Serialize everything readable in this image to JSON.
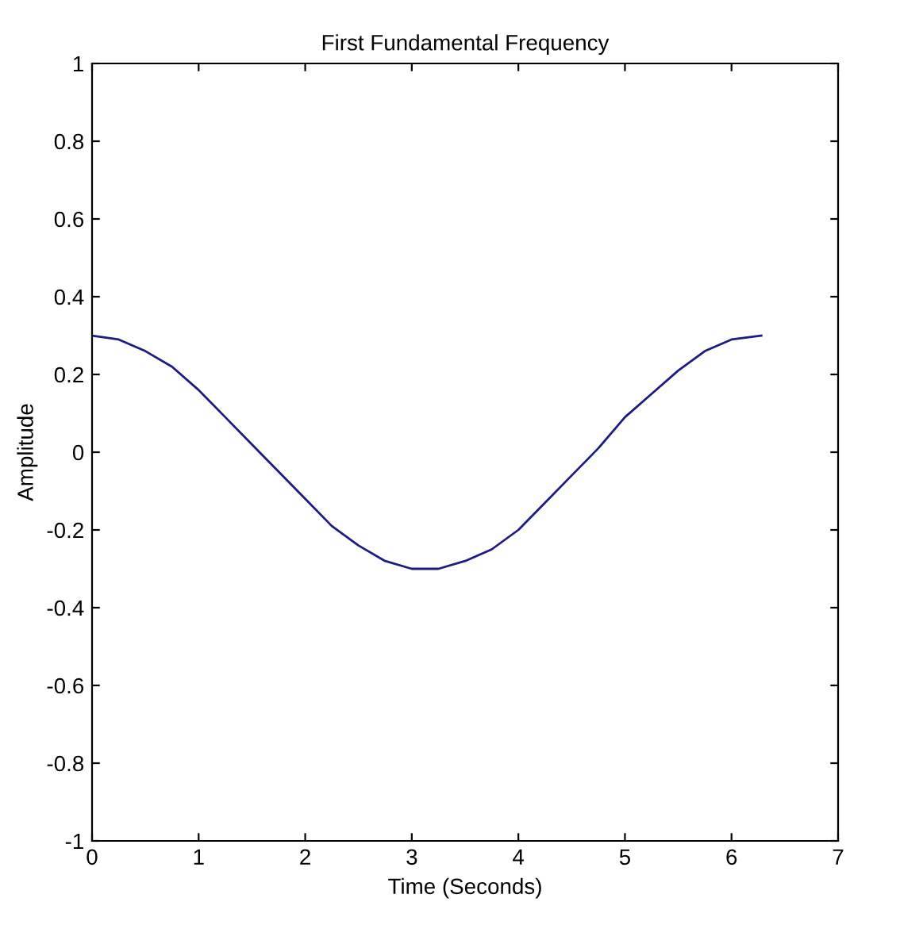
{
  "chart_data": {
    "type": "line",
    "title": "First Fundamental Frequency",
    "xlabel": "Time (Seconds)",
    "ylabel": "Amplitude",
    "x": [
      0,
      0.25,
      0.5,
      0.75,
      1,
      1.25,
      1.5,
      1.75,
      2,
      2.25,
      2.5,
      2.75,
      3,
      3.25,
      3.5,
      3.75,
      4,
      4.25,
      4.5,
      4.75,
      5,
      5.25,
      5.5,
      5.75,
      6,
      6.28
    ],
    "series": [
      {
        "color": "#1a1a8c",
        "values": [
          0.3,
          0.29,
          0.26,
          0.22,
          0.16,
          0.09,
          0.02,
          -0.05,
          -0.12,
          -0.19,
          -0.24,
          -0.28,
          -0.3,
          -0.3,
          -0.28,
          -0.25,
          -0.2,
          -0.13,
          -0.06,
          0.01,
          0.09,
          0.15,
          0.21,
          0.26,
          0.29,
          0.3
        ]
      }
    ],
    "xlim": [
      0,
      7
    ],
    "ylim": [
      -1,
      1
    ],
    "xticks": [
      0,
      1,
      2,
      3,
      4,
      5,
      6,
      7
    ],
    "yticks": [
      -1,
      -0.8,
      -0.6,
      -0.4,
      -0.2,
      0,
      0.2,
      0.4,
      0.6,
      0.8,
      1
    ],
    "grid": false,
    "legend": false
  }
}
